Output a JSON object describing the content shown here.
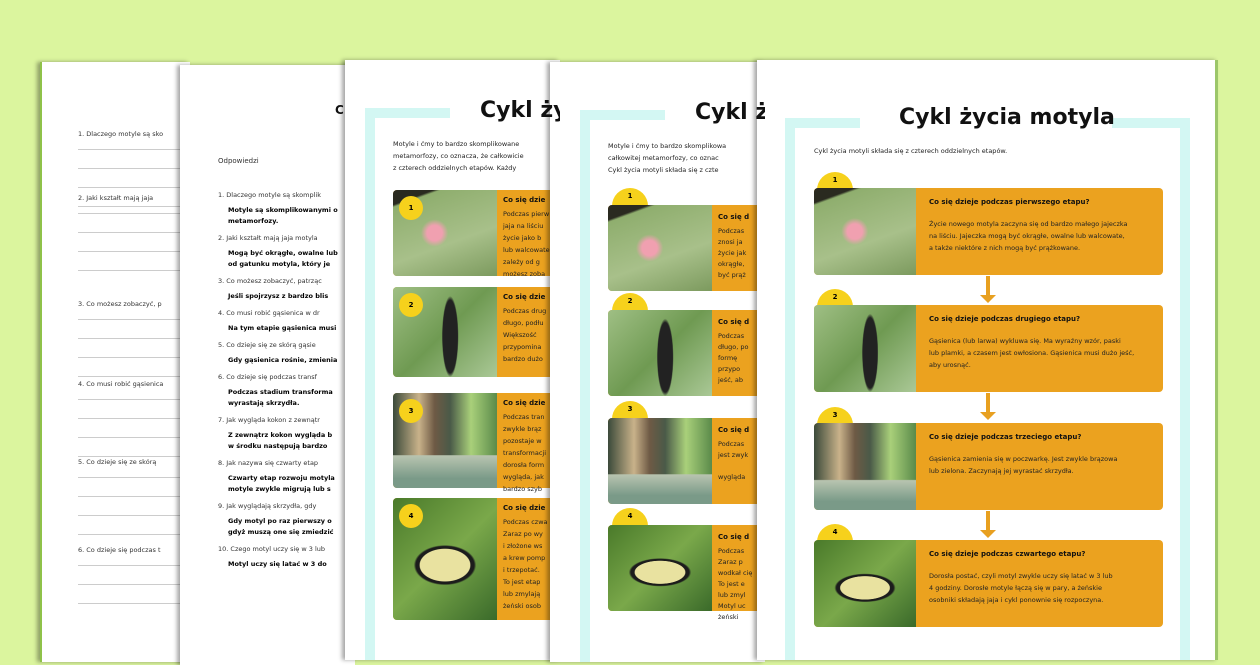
{
  "worksheet": {
    "questions": [
      "1. Dlaczego motyle są sko",
      "2. Jaki kształt mają jaja",
      "3. Co możesz zobaczyć, p",
      "4. Co musi robić gąsienica",
      "5. Co dzieje się ze skórą",
      "6. Co dzieje się podczas t"
    ]
  },
  "answers": {
    "title": "C",
    "heading": "Odpowiedzi",
    "items": [
      {
        "q": "1. Dlaczego motyle są skomplik",
        "a": [
          "Motyle są skomplikowanymi o",
          "metamorfozy."
        ]
      },
      {
        "q": "2. Jaki kształt mają jaja motyla",
        "a": [
          "Mogą być okrągłe, owalne lub",
          "od gatunku motyla, który je"
        ]
      },
      {
        "q": "3. Co możesz zobaczyć, patrząc",
        "a": [
          "Jeśli spojrzysz z bardzo blis"
        ]
      },
      {
        "q": "4. Co musi robić gąsienica w dr",
        "a": [
          "Na tym etapie gąsienica musi"
        ]
      },
      {
        "q": "5. Co dzieje się ze skórą gąsie",
        "a": [
          "Gdy gąsienica rośnie, zmienia"
        ]
      },
      {
        "q": "6. Co dzieje się podczas transf",
        "a": [
          "Podczas stadium transforma",
          "wyrastają skrzydła."
        ]
      },
      {
        "q": "7. Jak wygląda kokon z zewnątr",
        "a": [
          "Z zewnątrz kokon wygląda b",
          "w środku następują bardzo"
        ]
      },
      {
        "q": "8. Jak nazywa się czwarty etap",
        "a": [
          "Czwarty etap rozwoju motyla",
          "motyle zwykle migrują lub s"
        ]
      },
      {
        "q": "9. Jak wyglądają skrzydła, gdy",
        "a": [
          "Gdy motyl po raz pierwszy o",
          "gdyż muszą one się zmiedzić"
        ]
      },
      {
        "q": "10. Czego motyl uczy się w 3 lub",
        "a": [
          "Motyl uczy się latać w 3 do"
        ]
      }
    ]
  },
  "version_a": {
    "title": "Cykl ży",
    "intro": [
      "Motyle i ćmy to bardzo skomplikowane",
      "metamorfozy, co oznacza, że całkowicie",
      "z czterech oddzielnych etapów. Każdy"
    ],
    "stages": [
      {
        "num": "1",
        "q": "Co się dzie",
        "t": [
          "Podczas pierw",
          "jaja na liściu",
          "życie jako b",
          "lub walcowate",
          "zależy od g",
          "możesz zoba"
        ]
      },
      {
        "num": "2",
        "q": "Co się dzie",
        "t": [
          "Podczas drug",
          "długo, podłu",
          "Większość",
          "przypomina",
          "bardzo dużo"
        ]
      },
      {
        "num": "3",
        "q": "Co się dzie",
        "t": [
          "Podczas tran",
          "zwykle brąz",
          "pozostaje w",
          "transformacji",
          "dorosła form",
          "wygląda, jak",
          "bardzo szyb"
        ]
      },
      {
        "num": "4",
        "q": "Co się dzie",
        "t": [
          "Podczas czwa",
          "Zaraz po wy",
          "i złożone ws",
          "a krew pomp",
          "i trzepotać.",
          "To jest etap",
          "lub zmylają",
          "żeński osob"
        ]
      }
    ]
  },
  "version_b": {
    "title": "Cykl ży",
    "intro": [
      "Motyle i ćmy to bardzo skomplikowa",
      "całkowitej metamorfozy, co oznac",
      "Cykl życia motyli składa się z czte"
    ],
    "stages": [
      {
        "num": "1",
        "q": "Co się d",
        "t": [
          "Podczas",
          "znosi ja",
          "życie jak",
          "okrągłe,",
          "być prąż"
        ]
      },
      {
        "num": "2",
        "q": "Co się d",
        "t": [
          "Podczas",
          "długo, po",
          "formę ",
          "przypo",
          "jeść, ab"
        ]
      },
      {
        "num": "3",
        "q": "Co się d",
        "t": [
          "Podczas",
          "jest zwyk",
          "",
          "wygląda"
        ]
      },
      {
        "num": "4",
        "q": "Co się d",
        "t": [
          "Podczas",
          "Zaraz p",
          "wodkał cię",
          "To jest e",
          "lub zmyl",
          "Motyl uc",
          "żeński"
        ]
      }
    ]
  },
  "main": {
    "title": "Cykl życia motyla",
    "intro": "Cykl życia motyli składa się z czterech oddzielnych etapów.",
    "stages": [
      {
        "num": "1",
        "q": "Co się dzieje podczas pierwszego etapu?",
        "t": [
          "Życie nowego motyla zaczyna się od bardzo małego jajeczka",
          "na liściu. Jajeczka mogą być okrągłe, owalne lub walcowate,",
          "a także niektóre z nich mogą być prążkowane."
        ]
      },
      {
        "num": "2",
        "q": "Co się dzieje podczas drugiego etapu?",
        "t": [
          "Gąsienica (lub larwa) wykluwa się. Ma wyraźny wzór, paski",
          "lub plamki, a czasem jest owłosiona. Gąsienica musi dużo jeść,",
          "aby urosnąć."
        ]
      },
      {
        "num": "3",
        "q": "Co się dzieje podczas trzeciego etapu?",
        "t": [
          "Gąsienica zamienia się w poczwarkę. Jest zwykle brązowa",
          "lub zielona. Zaczynają jej wyrastać skrzydła."
        ]
      },
      {
        "num": "4",
        "q": "Co się dzieje podczas czwartego etapu?",
        "t": [
          "Dorosła postać, czyli motyl zwykle uczy się latać w 3 lub",
          "4 godziny.  Dorosłe motyle łączą się w pary, a żeńskie",
          "osobniki składają jaja i cykl ponownie się rozpoczyna."
        ]
      }
    ]
  },
  "colors": {
    "background": "#dbf59e",
    "card": "#eba21f",
    "number_tab": "#f6d11c",
    "frame": "#d3f7f3"
  }
}
